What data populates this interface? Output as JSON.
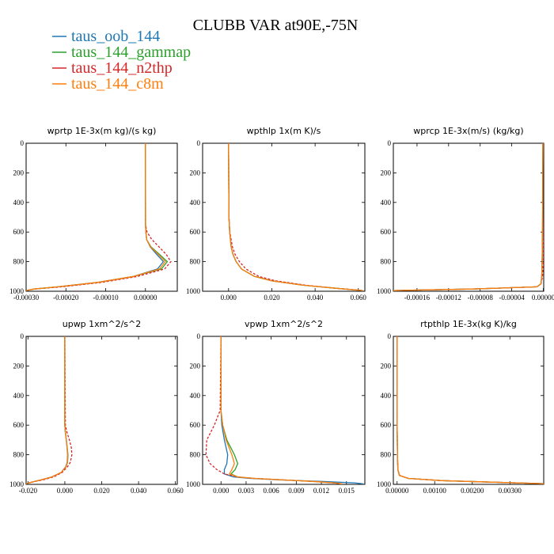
{
  "title": "CLUBB VAR at90E,-75N",
  "legend": [
    {
      "name": "taus_oob_144",
      "color": "#1f77b4"
    },
    {
      "name": "taus_144_gammap",
      "color": "#2ca02c"
    },
    {
      "name": "taus_144_n2thp",
      "color": "#d62728"
    },
    {
      "name": "taus_144_c8m",
      "color": "#ff7f0e"
    }
  ],
  "chart_data": [
    {
      "type": "line",
      "title": "wprtp   1E-3x(m kg)/(s kg)",
      "xlim": [
        -0.0003,
        8e-05
      ],
      "ylim": [
        1000,
        0
      ],
      "xticks": [
        -0.0003,
        -0.0002,
        -0.0001,
        0.0
      ],
      "xtick_labels": [
        "-0.00030",
        "-0.00020",
        "-0.00010",
        "0.00000"
      ],
      "yticks": [
        0,
        200,
        400,
        600,
        800,
        1000
      ],
      "ytick_labels": [
        "0",
        "200",
        "400",
        "600",
        "800",
        "1000"
      ],
      "y": [
        0,
        550,
        600,
        650,
        700,
        750,
        800,
        850,
        900,
        940,
        970,
        985,
        995
      ],
      "series": [
        {
          "name": "taus_oob_144",
          "color": "#1f77b4",
          "dash": false,
          "values": [
            0,
            3e-07,
            1e-06,
            3e-06,
            1.2e-05,
            2.8e-05,
            4.5e-05,
            3e-05,
            -3e-05,
            -0.00012,
            -0.00022,
            -0.00028,
            -0.0003
          ]
        },
        {
          "name": "taus_144_gammap",
          "color": "#2ca02c",
          "dash": false,
          "values": [
            0,
            3e-07,
            1e-06,
            3e-06,
            1.4e-05,
            3.5e-05,
            5.5e-05,
            4e-05,
            -3e-05,
            -0.00012,
            -0.00022,
            -0.00028,
            -0.0003
          ]
        },
        {
          "name": "taus_144_n2thp",
          "color": "#d62728",
          "dash": true,
          "values": [
            0,
            3e-07,
            4e-06,
            1.6e-05,
            3.4e-05,
            5.2e-05,
            6.4e-05,
            4.8e-05,
            -2e-05,
            -0.00011,
            -0.00021,
            -0.00028,
            -0.0003
          ]
        },
        {
          "name": "taus_144_c8m",
          "color": "#ff7f0e",
          "dash": false,
          "values": [
            0,
            3e-07,
            1e-06,
            3e-06,
            1.3e-05,
            3.2e-05,
            5e-05,
            3.5e-05,
            -3e-05,
            -0.00012,
            -0.00022,
            -0.00028,
            -0.0003
          ]
        }
      ]
    },
    {
      "type": "line",
      "title": "wpthlp   1x(m K)/s",
      "xlim": [
        -0.012,
        0.063
      ],
      "ylim": [
        1000,
        0
      ],
      "xticks": [
        0.0,
        0.02,
        0.04,
        0.06
      ],
      "xtick_labels": [
        "0.000",
        "0.020",
        "0.040",
        "0.060"
      ],
      "yticks": [
        0,
        200,
        400,
        600,
        800,
        1000
      ],
      "ytick_labels": [
        "0",
        "200",
        "400",
        "600",
        "800",
        "1000"
      ],
      "y": [
        0,
        500,
        600,
        700,
        750,
        800,
        850,
        900,
        930,
        960,
        980,
        995
      ],
      "series": [
        {
          "name": "taus_oob_144",
          "color": "#1f77b4",
          "dash": false,
          "values": [
            0,
            0.0002,
            0.0005,
            0.0012,
            0.002,
            0.0035,
            0.006,
            0.012,
            0.02,
            0.035,
            0.05,
            0.062
          ]
        },
        {
          "name": "taus_144_gammap",
          "color": "#2ca02c",
          "dash": false,
          "values": [
            0,
            0.0002,
            0.0005,
            0.0012,
            0.002,
            0.0035,
            0.006,
            0.012,
            0.02,
            0.035,
            0.05,
            0.062
          ]
        },
        {
          "name": "taus_144_n2thp",
          "color": "#d62728",
          "dash": true,
          "values": [
            0,
            0.0002,
            0.0006,
            0.0018,
            0.003,
            0.005,
            0.008,
            0.014,
            0.022,
            0.036,
            0.05,
            0.062
          ]
        },
        {
          "name": "taus_144_c8m",
          "color": "#ff7f0e",
          "dash": false,
          "values": [
            0,
            0.0002,
            0.0005,
            0.0012,
            0.002,
            0.0035,
            0.006,
            0.012,
            0.02,
            0.035,
            0.05,
            0.062
          ]
        }
      ]
    },
    {
      "type": "line",
      "title": "wprcp   1E-3x(m/s) (kg/kg)",
      "xlim": [
        -0.00019,
        5e-07
      ],
      "ylim": [
        1000,
        0
      ],
      "xticks": [
        -0.00016,
        -0.00012,
        -8e-05,
        -4e-05,
        0.0
      ],
      "xtick_labels": [
        "-0.00016",
        "-0.00012",
        "-0.00008",
        "-0.00004",
        "0.00000"
      ],
      "yticks": [
        0,
        200,
        400,
        600,
        800,
        1000
      ],
      "ytick_labels": [
        "0",
        "200",
        "400",
        "600",
        "800",
        "1000"
      ],
      "y": [
        0,
        400,
        600,
        800,
        900,
        950,
        970,
        985,
        995
      ],
      "series": [
        {
          "name": "taus_oob_144",
          "color": "#1f77b4",
          "dash": false,
          "values": [
            -5e-07,
            -8e-07,
            -1e-06,
            -1.5e-06,
            -2e-06,
            -3e-06,
            -8e-06,
            -9e-05,
            -0.00019
          ]
        },
        {
          "name": "taus_144_gammap",
          "color": "#2ca02c",
          "dash": false,
          "values": [
            -5e-07,
            -8e-07,
            -1e-06,
            -1.5e-06,
            -2e-06,
            -3e-06,
            -8e-06,
            -9e-05,
            -0.00019
          ]
        },
        {
          "name": "taus_144_n2thp",
          "color": "#d62728",
          "dash": true,
          "values": [
            -5e-07,
            -8e-07,
            -2e-07,
            0.0,
            -1e-06,
            -3e-06,
            -8e-06,
            -9e-05,
            -0.00019
          ]
        },
        {
          "name": "taus_144_c8m",
          "color": "#ff7f0e",
          "dash": false,
          "values": [
            -5e-07,
            -8e-07,
            -1e-06,
            -1.5e-06,
            -2e-06,
            -3e-06,
            -8e-06,
            -9e-05,
            -0.00019
          ]
        }
      ]
    },
    {
      "type": "line",
      "title": "upwp   1xm^2/s^2",
      "xlim": [
        -0.021,
        0.061
      ],
      "ylim": [
        1000,
        0
      ],
      "xticks": [
        -0.02,
        0.0,
        0.02,
        0.04,
        0.06
      ],
      "xtick_labels": [
        "-0.020",
        "0.000",
        "0.020",
        "0.040",
        "0.060"
      ],
      "yticks": [
        0,
        200,
        400,
        600,
        800,
        1000
      ],
      "ytick_labels": [
        "0",
        "200",
        "400",
        "600",
        "800",
        "1000"
      ],
      "y": [
        0,
        600,
        650,
        700,
        750,
        800,
        850,
        880,
        920,
        950,
        970,
        985,
        995
      ],
      "series": [
        {
          "name": "taus_oob_144",
          "color": "#1f77b4",
          "dash": false,
          "values": [
            0,
            0,
            0.0003,
            0.0008,
            0.0012,
            0.0015,
            0.0013,
            0.0005,
            -0.002,
            -0.007,
            -0.013,
            -0.018,
            -0.021
          ]
        },
        {
          "name": "taus_144_gammap",
          "color": "#2ca02c",
          "dash": false,
          "values": [
            0,
            0,
            0.0003,
            0.0008,
            0.0013,
            0.0017,
            0.0015,
            0.0007,
            -0.002,
            -0.007,
            -0.013,
            -0.018,
            -0.021
          ]
        },
        {
          "name": "taus_144_n2thp",
          "color": "#d62728",
          "dash": true,
          "values": [
            0,
            0.0003,
            0.0012,
            0.0025,
            0.0035,
            0.0038,
            0.003,
            0.0015,
            -0.0015,
            -0.006,
            -0.012,
            -0.018,
            -0.021
          ]
        },
        {
          "name": "taus_144_c8m",
          "color": "#ff7f0e",
          "dash": false,
          "values": [
            0,
            0,
            0.0003,
            0.0008,
            0.0012,
            0.0016,
            0.0014,
            0.0006,
            -0.002,
            -0.007,
            -0.013,
            -0.018,
            -0.021
          ]
        }
      ]
    },
    {
      "type": "line",
      "title": "vpwp   1xm^2/s^2",
      "xlim": [
        -0.0022,
        0.0172
      ],
      "ylim": [
        1000,
        0
      ],
      "xticks": [
        0.0,
        0.003,
        0.006,
        0.009,
        0.012,
        0.015
      ],
      "xtick_labels": [
        "0.000",
        "0.003",
        "0.006",
        "0.009",
        "0.012",
        "0.015"
      ],
      "yticks": [
        0,
        200,
        400,
        600,
        800,
        1000
      ],
      "ytick_labels": [
        "0",
        "200",
        "400",
        "600",
        "800",
        "1000"
      ],
      "y": [
        0,
        500,
        600,
        700,
        800,
        860,
        900,
        930,
        950,
        960,
        970,
        980,
        990,
        997
      ],
      "series": [
        {
          "name": "taus_oob_144",
          "color": "#1f77b4",
          "dash": false,
          "values": [
            0,
            0,
            0.0001,
            0.0004,
            0.0008,
            0.0007,
            0.0004,
            0.0004,
            0.0015,
            0.0035,
            0.007,
            0.012,
            0.016,
            0.017
          ]
        },
        {
          "name": "taus_144_gammap",
          "color": "#2ca02c",
          "dash": false,
          "values": [
            0,
            0,
            0.0002,
            0.0007,
            0.0016,
            0.002,
            0.0017,
            0.0012,
            0.002,
            0.004,
            0.0075,
            0.011,
            0.0135,
            0.0145
          ]
        },
        {
          "name": "taus_144_n2thp",
          "color": "#d62728",
          "dash": true,
          "values": [
            0,
            -0.0001,
            -0.0008,
            -0.0017,
            -0.0018,
            -0.0013,
            -0.0005,
            0.0004,
            0.002,
            0.004,
            0.0075,
            0.011,
            0.0135,
            0.0145
          ]
        },
        {
          "name": "taus_144_c8m",
          "color": "#ff7f0e",
          "dash": false,
          "values": [
            0,
            0,
            0.0002,
            0.0006,
            0.0013,
            0.0016,
            0.0013,
            0.001,
            0.002,
            0.004,
            0.0075,
            0.011,
            0.0135,
            0.0145
          ]
        }
      ]
    },
    {
      "type": "line",
      "title": "rtpthlp   1E-3x(kg K)/kg",
      "xlim": [
        -0.0001,
        0.0039
      ],
      "ylim": [
        1000,
        0
      ],
      "xticks": [
        0.0,
        0.001,
        0.002,
        0.003
      ],
      "xtick_labels": [
        "0.00000",
        "0.00100",
        "0.00200",
        "0.00300"
      ],
      "yticks": [
        0,
        200,
        400,
        600,
        800,
        1000
      ],
      "ytick_labels": [
        "0",
        "200",
        "400",
        "600",
        "800",
        "1000"
      ],
      "y": [
        0,
        600,
        800,
        900,
        940,
        960,
        975,
        985,
        995
      ],
      "series": [
        {
          "name": "taus_oob_144",
          "color": "#1f77b4",
          "dash": false,
          "values": [
            0,
            0,
            1e-05,
            2e-05,
            6e-05,
            0.0003,
            0.0012,
            0.0025,
            0.0039
          ]
        },
        {
          "name": "taus_144_gammap",
          "color": "#2ca02c",
          "dash": false,
          "values": [
            0,
            0,
            1e-05,
            2e-05,
            6e-05,
            0.0003,
            0.0012,
            0.0025,
            0.0039
          ]
        },
        {
          "name": "taus_144_n2thp",
          "color": "#d62728",
          "dash": true,
          "values": [
            0,
            0,
            1e-05,
            2e-05,
            7e-05,
            0.0003,
            0.0012,
            0.0025,
            0.0039
          ]
        },
        {
          "name": "taus_144_c8m",
          "color": "#ff7f0e",
          "dash": false,
          "values": [
            0,
            0,
            1e-05,
            2e-05,
            6e-05,
            0.0003,
            0.0012,
            0.0025,
            0.0039
          ]
        }
      ]
    }
  ]
}
